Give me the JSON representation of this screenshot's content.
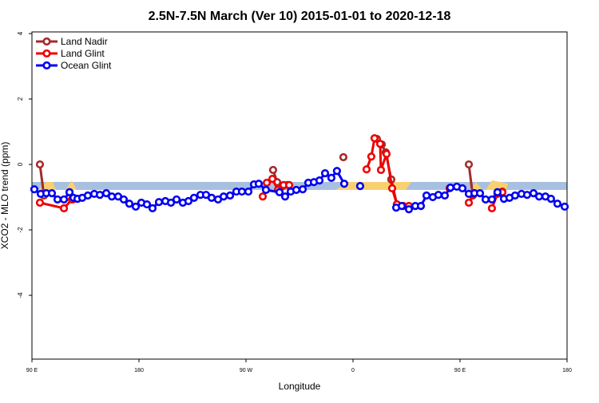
{
  "chart_data": {
    "type": "line",
    "title": "2.5N-7.5N March (Ver 10)   2015-01-01 to 2020-12-18",
    "x_label": "Longitude",
    "y_label": "XCO2 - MLO trend (ppm)",
    "xlim": [
      90,
      540
    ],
    "ylim": [
      -5.95,
      4.05
    ],
    "xticks": [
      {
        "value": 90,
        "label": "90 E"
      },
      180,
      {
        "value": 270,
        "label": "90 W"
      },
      {
        "value": 360,
        "label": "0"
      },
      {
        "value": 450,
        "label": "90 E"
      },
      {
        "value": 540,
        "label": "180"
      }
    ],
    "yticks": [
      -4,
      -2,
      0,
      2,
      4
    ],
    "legend": "top-left",
    "series": [
      {
        "name": "Land Nadir",
        "color": "#a52a2a",
        "x": [
          96.7,
          100.1,
          null,
          121.6,
          124.3,
          null,
          292.8,
          296.2,
          300.2,
          304.9,
          null,
          351.9,
          null,
          380.1,
          384.2,
          387.5,
          392.2,
          396.9,
          null,
          457.4,
          460.7,
          null,
          481.5,
          485.6
        ],
        "values": [
          0.0,
          -0.95,
          null,
          -0.85,
          -1.07,
          null,
          -0.17,
          -0.54,
          -0.68,
          -0.63,
          null,
          0.22,
          null,
          0.78,
          0.61,
          0.37,
          -0.46,
          -1.22,
          null,
          0.0,
          -0.95,
          null,
          -0.85,
          -0.83
        ]
      },
      {
        "name": "Land Glint",
        "color": "#ee0000",
        "x": [
          96.7,
          116.9,
          123.6,
          null,
          284.1,
          287.5,
          292.2,
          296.9,
          301.6,
          306.3,
          null,
          371.4,
          375.4,
          378.1,
          382.8,
          383.5,
          388.2,
          392.9,
          396.9,
          402.3,
          407.0,
          null,
          441.2,
          null,
          457.4,
          462.1,
          null,
          476.8,
          481.5,
          485.6
        ],
        "values": [
          -1.17,
          -1.34,
          -1.07,
          null,
          -0.98,
          -0.56,
          -0.44,
          -0.78,
          -0.63,
          -0.63,
          null,
          -0.15,
          0.24,
          0.8,
          0.63,
          -0.17,
          0.32,
          -0.73,
          -1.22,
          -1.27,
          -1.27,
          null,
          -0.73,
          null,
          -1.17,
          -0.88,
          null,
          -1.34,
          -0.9,
          -0.85
        ]
      },
      {
        "name": "Ocean Glint",
        "color": "#0000ee",
        "x": [
          92.0,
          97.4,
          102.1,
          106.8,
          111.5,
          116.9,
          121.6,
          124.9,
          128.3,
          132.3,
          137.0,
          142.4,
          147.1,
          152.5,
          157.2,
          162.5,
          167.2,
          171.9,
          177.3,
          182.0,
          186.7,
          191.4,
          196.8,
          202.2,
          206.9,
          211.6,
          216.9,
          221.6,
          226.3,
          231.7,
          236.4,
          241.1,
          246.5,
          251.2,
          256.6,
          261.9,
          266.6,
          272.0,
          276.7,
          280.7,
          286.8,
          298.2,
          302.9,
          307.6,
          312.3,
          317.7,
          322.4,
          327.1,
          331.8,
          336.5,
          341.8,
          346.5,
          352.6,
          null,
          366.0,
          null,
          396.3,
          401.0,
          407.0,
          412.4,
          417.1,
          421.8,
          427.1,
          431.8,
          437.2,
          441.9,
          447.3,
          452.0,
          457.4,
          462.1,
          466.8,
          471.5,
          476.8,
          481.5,
          486.9,
          491.6,
          496.3,
          501.7,
          506.4,
          511.8,
          516.5,
          521.8,
          526.5,
          531.9,
          538.0
        ],
        "values": [
          -0.76,
          -0.9,
          -0.88,
          -0.88,
          -1.07,
          -1.07,
          -0.85,
          -1.02,
          -1.05,
          -1.02,
          -0.95,
          -0.9,
          -0.93,
          -0.88,
          -0.98,
          -0.98,
          -1.07,
          -1.2,
          -1.29,
          -1.17,
          -1.22,
          -1.34,
          -1.15,
          -1.12,
          -1.17,
          -1.07,
          -1.17,
          -1.12,
          -1.02,
          -0.93,
          -0.93,
          -1.02,
          -1.07,
          -0.98,
          -0.95,
          -0.83,
          -0.83,
          -0.83,
          -0.61,
          -0.59,
          -0.78,
          -0.85,
          -0.98,
          -0.83,
          -0.78,
          -0.76,
          -0.56,
          -0.54,
          -0.49,
          -0.27,
          -0.41,
          -0.2,
          -0.59,
          null,
          -0.66,
          null,
          -1.32,
          -1.27,
          -1.37,
          -1.27,
          -1.27,
          -0.95,
          -1.0,
          -0.93,
          -0.95,
          -0.71,
          -0.68,
          -0.73,
          -0.9,
          -0.88,
          -0.88,
          -1.07,
          -1.07,
          -0.85,
          -1.05,
          -1.02,
          -0.95,
          -0.9,
          -0.93,
          -0.88,
          -0.98,
          -0.98,
          -1.05,
          -1.2,
          -1.29
        ]
      }
    ]
  }
}
